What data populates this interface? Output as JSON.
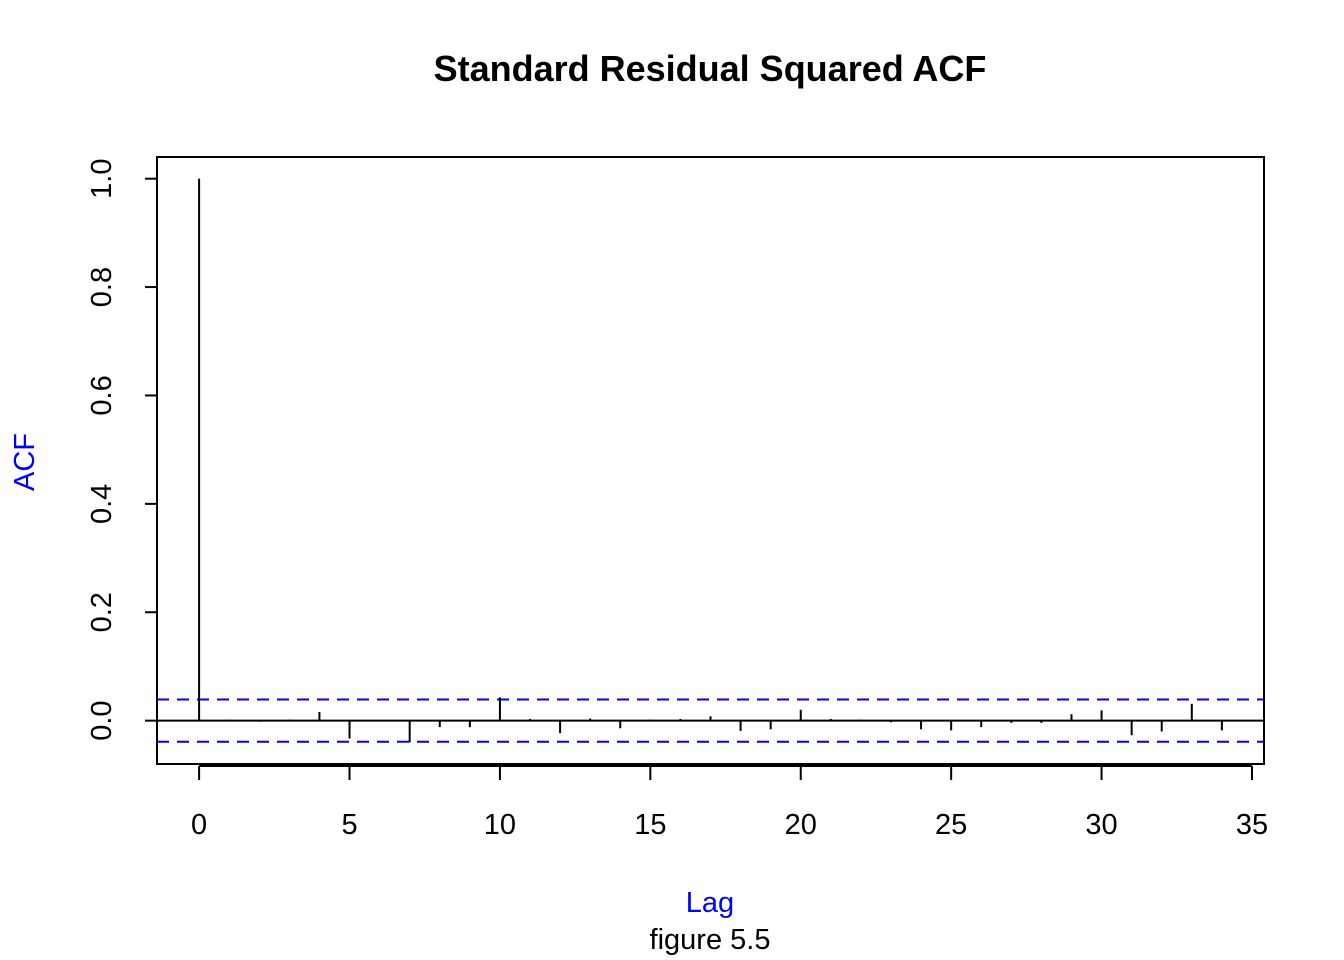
{
  "chart_data": {
    "type": "bar",
    "style": "acf-spikes",
    "title": "Standard Residual Squared ACF",
    "xlabel": "Lag",
    "ylabel": "ACF",
    "subtitle": "figure 5.5",
    "xlim": [
      -1.4,
      35.4
    ],
    "ylim": [
      -0.08,
      1.04
    ],
    "x_ticks": [
      0,
      5,
      10,
      15,
      20,
      25,
      30,
      35
    ],
    "y_ticks": [
      0.0,
      0.2,
      0.4,
      0.6,
      0.8,
      1.0
    ],
    "x_tick_labels": [
      "0",
      "5",
      "10",
      "15",
      "20",
      "25",
      "30",
      "35"
    ],
    "y_tick_labels": [
      "0.0",
      "0.2",
      "0.4",
      "0.6",
      "0.8",
      "1.0"
    ],
    "confidence_band": [
      -0.039,
      0.039
    ],
    "lags": [
      0,
      1,
      2,
      3,
      4,
      5,
      6,
      7,
      8,
      9,
      10,
      11,
      12,
      13,
      14,
      15,
      16,
      17,
      18,
      19,
      20,
      21,
      22,
      23,
      24,
      25,
      26,
      27,
      28,
      29,
      30,
      31,
      32,
      33,
      34
    ],
    "values": [
      1.0,
      0.002,
      -0.002,
      0.002,
      0.016,
      -0.033,
      0.001,
      -0.04,
      -0.012,
      -0.012,
      0.043,
      0.003,
      -0.023,
      0.004,
      -0.014,
      0.002,
      0.003,
      0.008,
      -0.019,
      -0.016,
      0.02,
      0.003,
      0.002,
      -0.003,
      -0.016,
      -0.018,
      -0.012,
      -0.004,
      -0.004,
      0.012,
      0.019,
      -0.027,
      -0.02,
      0.031,
      -0.018
    ],
    "grid": false,
    "legend": "none",
    "colors": {
      "spike": "#000000",
      "band": "#0000ff",
      "axis_title": "#0000ff",
      "text": "#000000"
    }
  }
}
